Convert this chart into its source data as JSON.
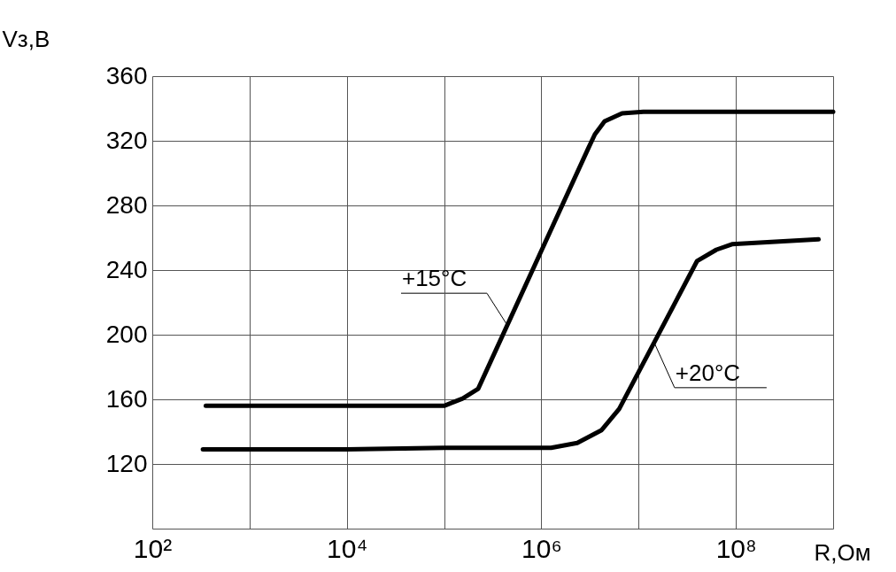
{
  "chart_data": {
    "type": "line",
    "xlabel": "R,Ом",
    "ylabel": "Vз,В",
    "log": "x",
    "grid": true,
    "marker": "none",
    "line_style": "solid",
    "xlim": [
      100,
      1000000000
    ],
    "ylim": [
      80,
      360
    ],
    "xticks": [
      {
        "value": 100,
        "label": "10²"
      },
      {
        "value": 1000,
        "label": null
      },
      {
        "value": 10000,
        "label": "10⁴"
      },
      {
        "value": 100000,
        "label": null
      },
      {
        "value": 1000000,
        "label": "10⁶"
      },
      {
        "value": 10000000,
        "label": null
      },
      {
        "value": 100000000,
        "label": "10⁸"
      },
      {
        "value": 1000000000,
        "label": null
      }
    ],
    "yticks": [
      {
        "value": 80,
        "label": null
      },
      120,
      160,
      200,
      240,
      280,
      320,
      360
    ],
    "series": [
      {
        "name": "+15°C",
        "color": "#000000",
        "x": [
          355,
          1000,
          10000,
          67600,
          100000,
          155000,
          224000,
          3020000,
          3550000,
          4470000,
          6760000,
          11200000,
          1000000000
        ],
        "values": [
          156,
          156,
          156,
          156,
          156,
          160.5,
          166.5,
          315,
          324,
          332,
          337,
          338,
          338
        ]
      },
      {
        "name": "+20°C",
        "color": "#000000",
        "x": [
          331,
          10000,
          100000,
          631000,
          1260000,
          2340000,
          4170000,
          6310000,
          39800000,
          63100000,
          91200000,
          708000000
        ],
        "values": [
          129,
          129,
          130,
          130,
          130,
          133,
          141,
          154,
          245.5,
          252.6,
          256,
          259
        ]
      }
    ]
  }
}
